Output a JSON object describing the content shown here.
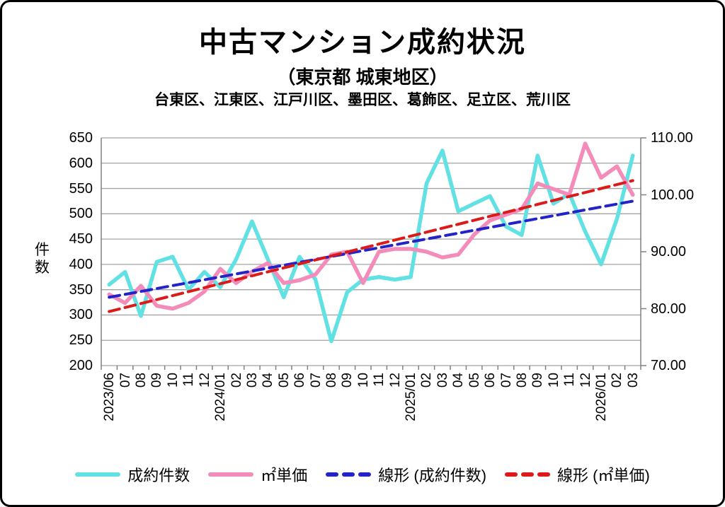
{
  "header": {
    "title": "中古マンション成約状況",
    "subtitle": "（東京都 城東地区）",
    "districts": "台東区、江東区、江戸川区、墨田区、葛飾区、足立区、荒川区"
  },
  "chart_data": {
    "type": "line",
    "title": "中古マンション成約状況",
    "categories": [
      "2023/06",
      "07",
      "08",
      "09",
      "10",
      "11",
      "12",
      "2024/01",
      "02",
      "03",
      "04",
      "05",
      "06",
      "07",
      "08",
      "09",
      "10",
      "11",
      "12",
      "2025/01",
      "02",
      "03",
      "04",
      "05",
      "06",
      "07",
      "08",
      "09",
      "10",
      "11",
      "12",
      "2026/01",
      "02",
      "03"
    ],
    "series": [
      {
        "name": "成約件数",
        "axis": "left",
        "style": "solid",
        "color": "#62E1E4",
        "values": [
          360,
          385,
          298,
          405,
          415,
          350,
          385,
          355,
          410,
          485,
          410,
          335,
          415,
          370,
          248,
          345,
          370,
          375,
          370,
          375,
          560,
          625,
          505,
          520,
          535,
          475,
          458,
          615,
          520,
          540,
          465,
          400,
          490,
          615
        ]
      },
      {
        "name": "㎡単価",
        "axis": "right",
        "style": "solid",
        "color": "#F48CB9",
        "values": [
          82.5,
          81,
          84,
          80.5,
          80,
          81,
          83,
          87,
          84.5,
          86.5,
          88,
          84.5,
          85,
          86,
          89.5,
          90,
          84.5,
          90,
          90.5,
          90.5,
          90,
          89,
          89.5,
          93,
          95.5,
          96.5,
          97.5,
          102,
          101,
          100,
          109,
          103,
          105,
          100
        ]
      },
      {
        "name": "線形 (成約件数)",
        "axis": "left",
        "style": "dashed",
        "color": "#2323C8",
        "trend_from": 335,
        "trend_to": 525
      },
      {
        "name": "線形 (㎡単価)",
        "axis": "right",
        "style": "dashed",
        "color": "#DC1A1A",
        "trend_from": 79.5,
        "trend_to": 102.5
      }
    ],
    "left_axis": {
      "label": "件\n数",
      "min": 200,
      "max": 650,
      "step": 50,
      "tick_labels": [
        "650",
        "600",
        "550",
        "500",
        "450",
        "400",
        "350",
        "300",
        "250",
        "200"
      ]
    },
    "right_axis": {
      "min": 70,
      "max": 110,
      "step": 10,
      "tick_labels": [
        "110.00",
        "100.00",
        "90.00",
        "80.00",
        "70.00"
      ]
    },
    "grid": true,
    "legend_position": "bottom"
  },
  "colors": {
    "grid": "#A3A3A3",
    "axis_border": "#808080",
    "text": "#000000"
  }
}
